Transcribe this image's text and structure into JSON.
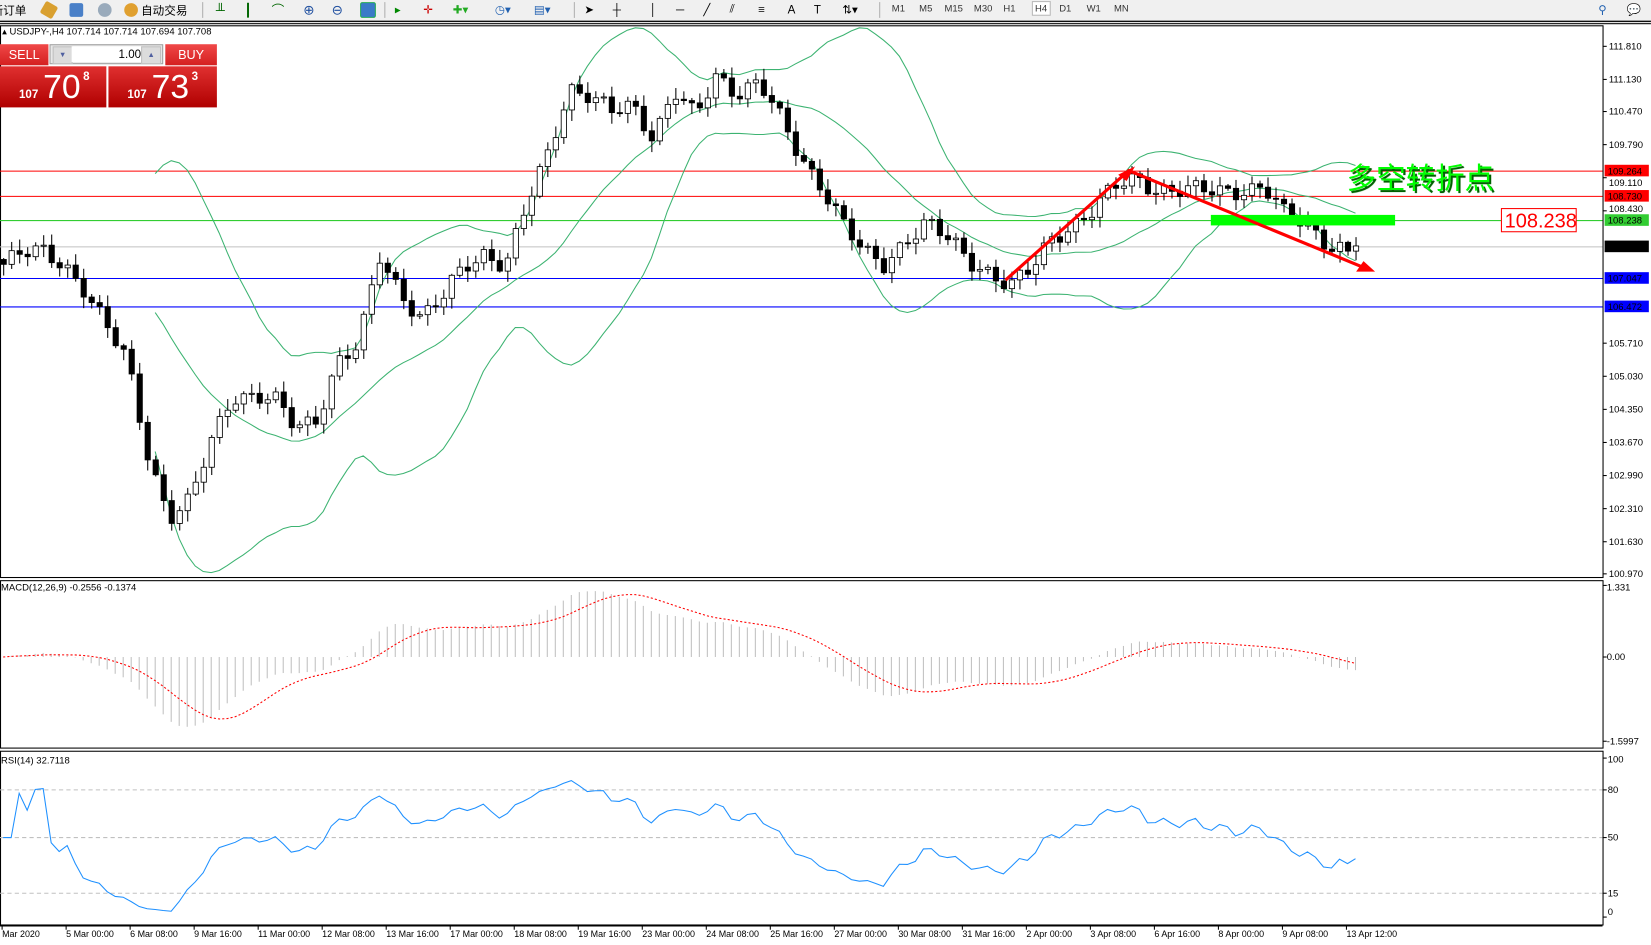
{
  "toolbar": {
    "new_order": "新订单",
    "auto_trading": "自动交易",
    "timeframes": [
      "M1",
      "M5",
      "M15",
      "M30",
      "H1",
      "H4",
      "D1",
      "W1",
      "MN"
    ],
    "active_timeframe": "H4"
  },
  "chart": {
    "header": "USDJPY-,H4  107.714 107.714 107.694 107.708",
    "symbol": "USDJPY-",
    "period": "H4",
    "price_axis": [
      "111.810",
      "111.130",
      "110.470",
      "109.790",
      "109.110",
      "108.430",
      "105.710",
      "105.030",
      "104.350",
      "103.670",
      "102.990",
      "102.310",
      "101.630",
      "100.970"
    ],
    "levels": [
      {
        "price": "109.264",
        "color": "#ff0000",
        "label_bg": "#ff0000",
        "label_fg": "#ffffff"
      },
      {
        "price": "108.730",
        "color": "#ff0000",
        "label_bg": "#ff0000",
        "label_fg": "#ffffff"
      },
      {
        "price": "108.238",
        "color": "#32cd32",
        "label_bg": "#32cd32",
        "label_fg": "#ffffff"
      },
      {
        "price": "107.708",
        "color": "#c0c0c0",
        "label_bg": "#000000",
        "label_fg": "#ffffff"
      },
      {
        "price": "107.047",
        "color": "#0000ff",
        "label_bg": "#0000ff",
        "label_fg": "#ffffff"
      },
      {
        "price": "106.472",
        "color": "#0000ff",
        "label_bg": "#0000ff",
        "label_fg": "#ffffff"
      }
    ],
    "close_path": [
      107.3,
      107.5,
      107.6,
      107.4,
      106.8,
      106.0,
      105.4,
      103.5,
      102.1,
      102.4,
      103.7,
      104.7,
      104.6,
      104.5,
      104.0,
      104.2,
      105.3,
      105.6,
      107.5,
      106.8,
      106.2,
      106.6,
      107.3,
      107.6,
      107.3,
      108.5,
      109.6,
      111.0,
      110.8,
      110.4,
      110.6,
      110.0,
      110.9,
      110.3,
      111.2,
      110.9,
      111.1,
      110.3,
      109.5,
      109.0,
      108.2,
      107.5,
      107.3,
      107.9,
      108.2,
      107.8,
      107.4,
      107.2,
      106.9,
      107.2,
      107.9,
      108.2,
      108.5,
      108.9,
      109.1,
      108.9,
      108.85,
      108.8,
      108.85,
      108.9,
      108.9,
      108.3,
      108.2,
      107.8,
      107.6,
      107.71
    ],
    "annotation_text": "多空转折点",
    "annotation_color": "#00ff00",
    "price_label": "108.238",
    "bull_color": "#ffffff",
    "bear_color": "#000000",
    "bands_color": "#3cb371"
  },
  "trade_panel": {
    "sell_label": "SELL",
    "buy_label": "BUY",
    "lot": "1.00",
    "sell_small": "107",
    "sell_big": "70",
    "sell_pip": "8",
    "buy_small": "107",
    "buy_big": "73",
    "buy_pip": "3"
  },
  "macd": {
    "label": "MACD(12,26,9) -0.2556 -0.1374",
    "axis": [
      "1.331",
      "0.00",
      "-1.5997"
    ],
    "signal_color": "#ff0000",
    "hist_color": "#c0c0c0"
  },
  "rsi": {
    "label": "RSI(14) 32.7118",
    "axis": [
      "100",
      "80",
      "50",
      "15",
      "0"
    ],
    "line_color": "#1e90ff"
  },
  "time_axis": [
    "Mar 2020",
    "5 Mar 00:00",
    "6 Mar 08:00",
    "9 Mar 16:00",
    "11 Mar 00:00",
    "12 Mar 08:00",
    "13 Mar 16:00",
    "17 Mar 00:00",
    "18 Mar 08:00",
    "19 Mar 16:00",
    "23 Mar 00:00",
    "24 Mar 08:00",
    "25 Mar 16:00",
    "27 Mar 00:00",
    "30 Mar 08:00",
    "31 Mar 16:00",
    "2 Apr 00:00",
    "3 Apr 08:00",
    "6 Apr 16:00",
    "8 Apr 00:00",
    "9 Apr 08:00",
    "13 Apr 12:00"
  ]
}
